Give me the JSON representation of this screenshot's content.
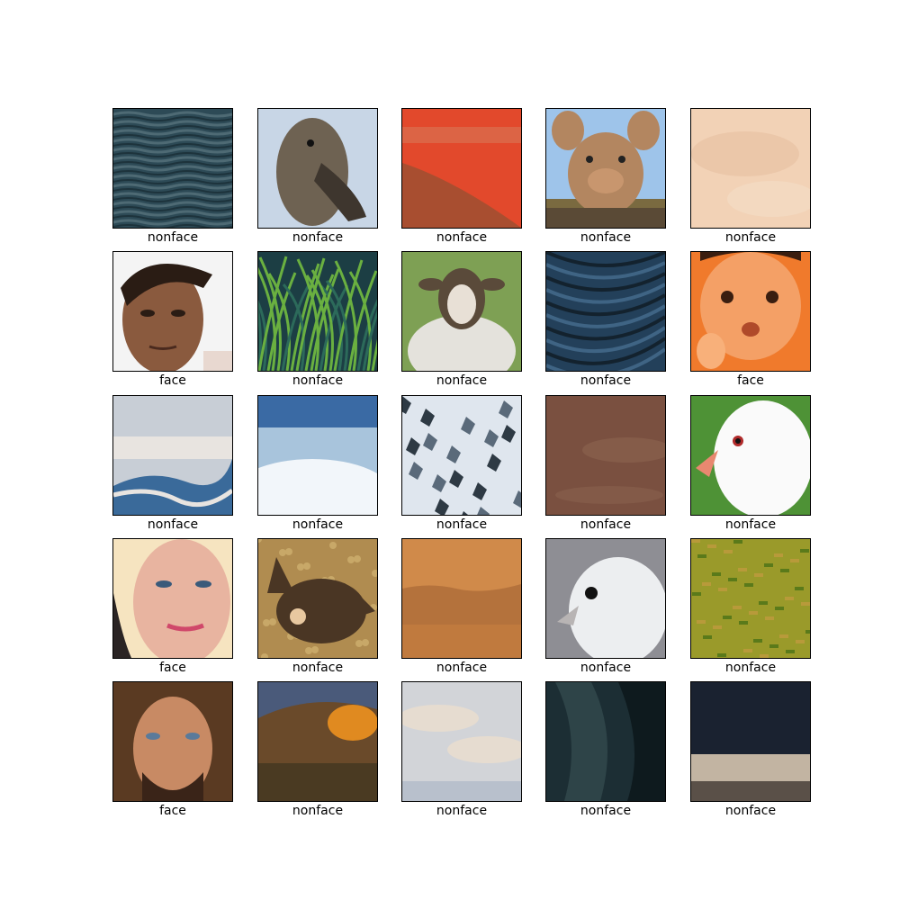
{
  "figure": {
    "cells": [
      {
        "label": "nonface",
        "subject": "dark rippled water",
        "palette": [
          "#2d4a56",
          "#4e6a74",
          "#1d333c"
        ]
      },
      {
        "label": "nonface",
        "subject": "duck head on water",
        "palette": [
          "#c8d6e6",
          "#6e6252",
          "#3e362e"
        ]
      },
      {
        "label": "nonface",
        "subject": "red sky over hill",
        "palette": [
          "#e2492c",
          "#a84e30",
          "#d87656"
        ]
      },
      {
        "label": "nonface",
        "subject": "pig",
        "palette": [
          "#9ec4ea",
          "#b38660",
          "#5a4a36"
        ]
      },
      {
        "label": "nonface",
        "subject": "peach sky",
        "palette": [
          "#f2d2b6",
          "#e8c2a4",
          "#f4dcc4"
        ]
      },
      {
        "label": "face",
        "subject": "man face",
        "palette": [
          "#f4f4f4",
          "#8a5a3e",
          "#2a1c14"
        ]
      },
      {
        "label": "nonface",
        "subject": "green grass",
        "palette": [
          "#2c6a5a",
          "#6ab040",
          "#1c3e44"
        ]
      },
      {
        "label": "nonface",
        "subject": "sheep",
        "palette": [
          "#7ea054",
          "#e4e2dc",
          "#5a4a3a"
        ]
      },
      {
        "label": "nonface",
        "subject": "dark blue branches",
        "palette": [
          "#23405a",
          "#3f6484",
          "#13222e"
        ]
      },
      {
        "label": "face",
        "subject": "baby face",
        "palette": [
          "#f07a2c",
          "#f4a066",
          "#3a1e10"
        ]
      },
      {
        "label": "nonface",
        "subject": "clouds over mountains",
        "palette": [
          "#c8ced6",
          "#e8e4e0",
          "#3a6a9a"
        ]
      },
      {
        "label": "nonface",
        "subject": "blue sky clouds",
        "palette": [
          "#3a6aa4",
          "#a8c4dc",
          "#f2f6fa"
        ]
      },
      {
        "label": "nonface",
        "subject": "snowy rocks",
        "palette": [
          "#dfe6ee",
          "#5a6a7a",
          "#2e3a44"
        ]
      },
      {
        "label": "nonface",
        "subject": "brown haze",
        "palette": [
          "#7a5040",
          "#8c6450",
          "#6a4436"
        ]
      },
      {
        "label": "nonface",
        "subject": "white bird",
        "palette": [
          "#4e9236",
          "#fafafa",
          "#e88870"
        ]
      },
      {
        "label": "face",
        "subject": "woman face",
        "palette": [
          "#f6e4c0",
          "#e8b4a0",
          "#2a2424"
        ]
      },
      {
        "label": "nonface",
        "subject": "cat in leaves",
        "palette": [
          "#b08c50",
          "#4a3624",
          "#c8a868"
        ]
      },
      {
        "label": "nonface",
        "subject": "orange sky",
        "palette": [
          "#d08a4a",
          "#b4723c",
          "#c07a3e"
        ]
      },
      {
        "label": "nonface",
        "subject": "white dove",
        "palette": [
          "#8e8e94",
          "#eceef0",
          "#b8b4b4"
        ]
      },
      {
        "label": "nonface",
        "subject": "meadow",
        "palette": [
          "#9a9a2a",
          "#5a7a1a",
          "#b89a3a"
        ]
      },
      {
        "label": "face",
        "subject": "man with long hair",
        "palette": [
          "#5a3a22",
          "#c88a64",
          "#3a2418"
        ]
      },
      {
        "label": "nonface",
        "subject": "autumn hillside",
        "palette": [
          "#4a5a7a",
          "#6a4a2a",
          "#e08a20"
        ]
      },
      {
        "label": "nonface",
        "subject": "pale clouds",
        "palette": [
          "#d2d4d8",
          "#e6dcd0",
          "#b8c0cc"
        ]
      },
      {
        "label": "nonface",
        "subject": "dark tree bark",
        "palette": [
          "#1c2e34",
          "#2e4448",
          "#0e1a1e"
        ]
      },
      {
        "label": "nonface",
        "subject": "dark sky with light",
        "palette": [
          "#1a2230",
          "#c2b4a2",
          "#5a5048"
        ]
      }
    ]
  }
}
